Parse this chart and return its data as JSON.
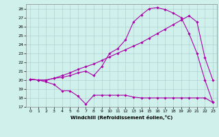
{
  "xlabel": "Windchill (Refroidissement éolien,°C)",
  "background_color": "#cff0eb",
  "grid_color": "#aacccc",
  "line_color": "#aa00aa",
  "xlim": [
    -0.5,
    23.5
  ],
  "ylim": [
    17,
    28.5
  ],
  "yticks": [
    17,
    18,
    19,
    20,
    21,
    22,
    23,
    24,
    25,
    26,
    27,
    28
  ],
  "xticks": [
    0,
    1,
    2,
    3,
    4,
    5,
    6,
    7,
    8,
    9,
    10,
    11,
    12,
    13,
    14,
    15,
    16,
    17,
    18,
    19,
    20,
    21,
    22,
    23
  ],
  "line1_x": [
    0,
    1,
    2,
    3,
    4,
    5,
    6,
    7,
    8,
    9,
    10,
    11,
    12,
    13,
    14,
    15,
    16,
    17,
    18,
    19,
    20,
    21,
    22,
    23
  ],
  "line1_y": [
    20.1,
    20.0,
    19.8,
    19.5,
    18.8,
    18.8,
    18.2,
    17.3,
    18.3,
    18.3,
    18.3,
    18.3,
    18.3,
    18.1,
    18.0,
    18.0,
    18.0,
    18.0,
    18.0,
    18.0,
    18.0,
    18.0,
    18.0,
    17.5
  ],
  "line2_x": [
    0,
    1,
    2,
    3,
    4,
    5,
    6,
    7,
    8,
    9,
    10,
    11,
    12,
    13,
    14,
    15,
    16,
    17,
    18,
    19,
    20,
    21,
    22,
    23
  ],
  "line2_y": [
    20.1,
    20.0,
    20.0,
    20.2,
    20.3,
    20.5,
    20.8,
    21.0,
    20.5,
    21.5,
    23.0,
    23.5,
    24.5,
    26.5,
    27.3,
    28.0,
    28.1,
    27.9,
    27.5,
    27.0,
    25.2,
    23.0,
    20.0,
    17.5
  ],
  "line3_x": [
    0,
    1,
    2,
    3,
    4,
    5,
    6,
    7,
    8,
    9,
    10,
    11,
    12,
    13,
    14,
    15,
    16,
    17,
    18,
    19,
    20,
    21,
    22,
    23
  ],
  "line3_y": [
    20.1,
    20.0,
    20.0,
    20.2,
    20.5,
    20.8,
    21.2,
    21.5,
    21.8,
    22.2,
    22.6,
    23.0,
    23.4,
    23.8,
    24.2,
    24.7,
    25.2,
    25.7,
    26.2,
    26.7,
    27.2,
    26.5,
    22.5,
    20.0
  ]
}
